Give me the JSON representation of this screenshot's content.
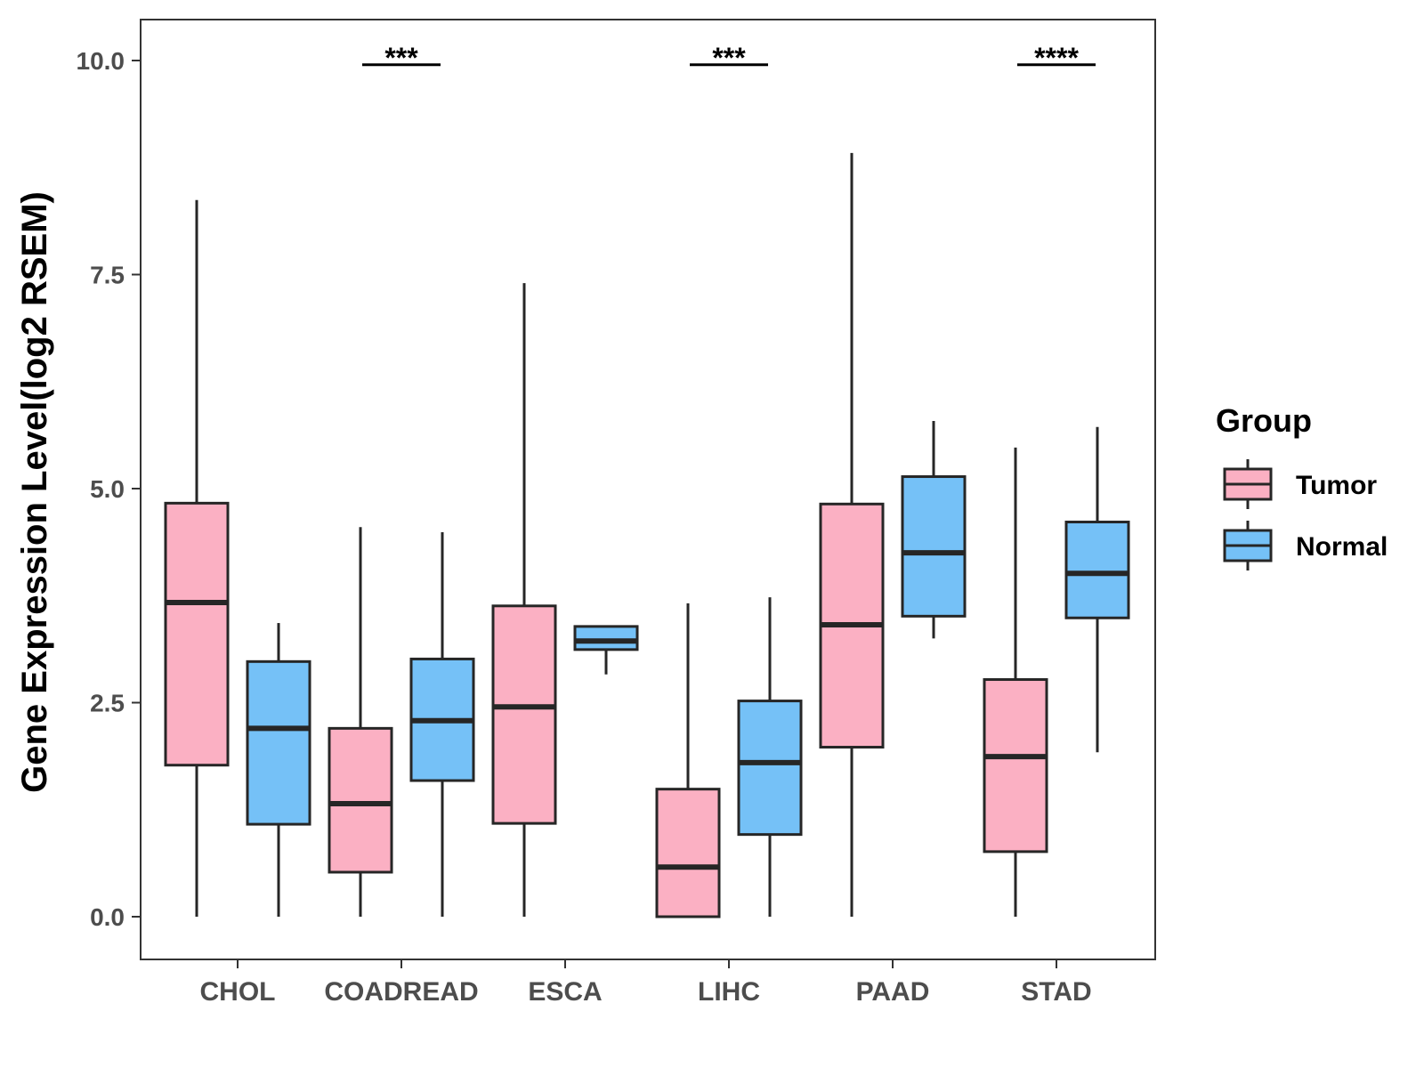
{
  "chart_data": {
    "type": "boxplot",
    "title": "",
    "xlabel": "",
    "ylabel": "Gene Expression Level(log2 RSEM)",
    "ylim": [
      -0.5,
      10.5
    ],
    "yticks": [
      0.0,
      2.5,
      5.0,
      7.5,
      10.0
    ],
    "ytick_labels": [
      "0.0",
      "2.5",
      "5.0",
      "7.5",
      "10.0"
    ],
    "categories": [
      "CHOL",
      "COADREAD",
      "ESCA",
      "LIHC",
      "PAAD",
      "STAD"
    ],
    "legend": {
      "title": "Group",
      "position": "right",
      "entries": [
        {
          "name": "Tumor",
          "color": "#FBB0C3"
        },
        {
          "name": "Normal",
          "color": "#75C1F7"
        }
      ]
    },
    "series": [
      {
        "name": "Tumor",
        "color": "#FBB0C3",
        "boxes": [
          {
            "category": "CHOL",
            "whisker_low": 0.0,
            "q1": 1.77,
            "median": 3.67,
            "q3": 4.83,
            "whisker_high": 8.37
          },
          {
            "category": "COADREAD",
            "whisker_low": 0.0,
            "q1": 0.52,
            "median": 1.32,
            "q3": 2.2,
            "whisker_high": 4.55
          },
          {
            "category": "ESCA",
            "whisker_low": 0.0,
            "q1": 1.09,
            "median": 2.45,
            "q3": 3.63,
            "whisker_high": 7.4
          },
          {
            "category": "LIHC",
            "whisker_low": 0.0,
            "q1": 0.0,
            "median": 0.58,
            "q3": 1.49,
            "whisker_high": 3.66
          },
          {
            "category": "PAAD",
            "whisker_low": 0.0,
            "q1": 1.98,
            "median": 3.41,
            "q3": 4.82,
            "whisker_high": 8.92
          },
          {
            "category": "STAD",
            "whisker_low": 0.0,
            "q1": 0.76,
            "median": 1.87,
            "q3": 2.77,
            "whisker_high": 5.48
          }
        ]
      },
      {
        "name": "Normal",
        "color": "#75C1F7",
        "boxes": [
          {
            "category": "CHOL",
            "whisker_low": 0.0,
            "q1": 1.08,
            "median": 2.2,
            "q3": 2.98,
            "whisker_high": 3.43
          },
          {
            "category": "COADREAD",
            "whisker_low": 0.0,
            "q1": 1.59,
            "median": 2.29,
            "q3": 3.01,
            "whisker_high": 4.49
          },
          {
            "category": "ESCA",
            "whisker_low": 2.83,
            "q1": 3.12,
            "median": 3.22,
            "q3": 3.39,
            "whisker_high": 3.39
          },
          {
            "category": "LIHC",
            "whisker_low": 0.0,
            "q1": 0.96,
            "median": 1.8,
            "q3": 2.52,
            "whisker_high": 3.73
          },
          {
            "category": "PAAD",
            "whisker_low": 3.25,
            "q1": 3.51,
            "median": 4.25,
            "q3": 5.14,
            "whisker_high": 5.79
          },
          {
            "category": "STAD",
            "whisker_low": 1.92,
            "q1": 3.49,
            "median": 4.01,
            "q3": 4.61,
            "whisker_high": 5.72
          }
        ]
      }
    ],
    "annotations": [
      {
        "category": "COADREAD",
        "label": "***",
        "y": 9.95
      },
      {
        "category": "LIHC",
        "label": "***",
        "y": 9.95
      },
      {
        "category": "STAD",
        "label": "****",
        "y": 9.95
      }
    ],
    "grid": false
  }
}
